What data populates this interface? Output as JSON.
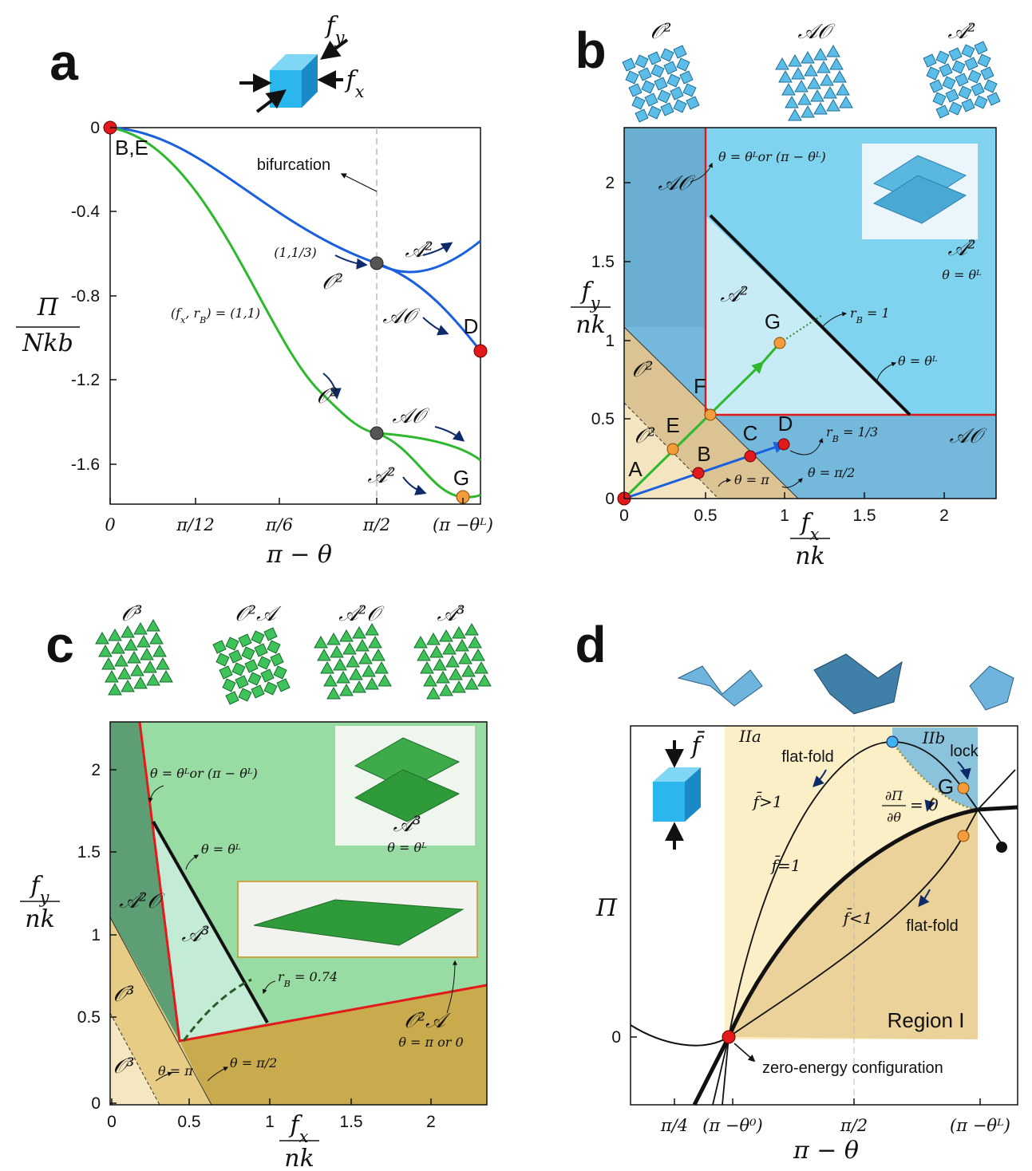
{
  "panels": {
    "a": {
      "label": "a",
      "inset": {
        "fy": [
          "f",
          "y"
        ],
        "fx": [
          "f",
          "x"
        ]
      },
      "y_axis": {
        "numerator": "Π",
        "denominator": "Nkb",
        "ticks": [
          "0",
          "-0.4",
          "-0.8",
          "-1.2",
          "-1.6"
        ]
      },
      "x_axis": {
        "title": "π − θ",
        "ticks": [
          "0",
          "π/12",
          "π/6",
          "π/2",
          "(π −θᴸ)"
        ]
      },
      "annotations": {
        "be": "B,E",
        "bifurcation": "bifurcation",
        "ratio": "(1,1/3)",
        "o2_upper": "𝒪²",
        "a2_upper": "𝒜²",
        "ao_upper": "𝒜𝒪",
        "d": "D",
        "green": [
          "(f",
          "x",
          ", r",
          "B",
          ") = (1,1)"
        ],
        "o2_lower": "𝒪²",
        "ao_lower": "𝒜𝒪",
        "a2_lower": "𝒜²",
        "g": "G"
      }
    },
    "b": {
      "label": "b",
      "tiles": [
        "𝒪²",
        "𝒜𝒪",
        "𝒜²"
      ],
      "y_axis": {
        "numerator": [
          "f",
          "y"
        ],
        "denominator": "nk",
        "ticks": [
          "0",
          "0.5",
          "1",
          "1.5",
          "2"
        ]
      },
      "x_axis": {
        "numerator": [
          "f",
          "x"
        ],
        "denominator": "nk",
        "ticks": [
          "0",
          "0.5",
          "1",
          "1.5",
          "2"
        ]
      },
      "annotations": {
        "boundary": "θ = θᴸor (π − θᴸ)",
        "ao_left": "𝒜𝒪",
        "a2_inner": "𝒜²",
        "a2_right": "𝒜²",
        "theta_l_right": "θ = θᴸ",
        "rb1": [
          "r",
          "B",
          " = 1"
        ],
        "theta_l_line": "θ = θᴸ",
        "g": "G",
        "f": "F",
        "o2_upper": "𝒪²",
        "e": "E",
        "o2_lower": "𝒪²",
        "d": "D",
        "c": "C",
        "b": "B",
        "a": "A",
        "rb13": [
          "r",
          "B",
          " = 1/3"
        ],
        "ao_right": "𝒜𝒪",
        "theta_pi": "θ = π",
        "theta_pi2": "θ = π/2"
      }
    },
    "c": {
      "label": "c",
      "tiles": [
        "𝒪³",
        "𝒪²𝒜",
        "𝒜²𝒪",
        "𝒜³"
      ],
      "y_axis": {
        "numerator": [
          "f",
          "y"
        ],
        "denominator": "nk",
        "ticks": [
          "0",
          "0.5",
          "1",
          "1.5",
          "2"
        ]
      },
      "x_axis": {
        "numerator": [
          "f",
          "x"
        ],
        "denominator": "nk",
        "ticks": [
          "0",
          "0.5",
          "1",
          "1.5",
          "2"
        ]
      },
      "annotations": {
        "boundary": "θ = θᴸor (π − θᴸ)",
        "theta_l_line": "θ = θᴸ",
        "a3_right": "𝒜³",
        "theta_l_right": "θ = θᴸ",
        "a2o": "𝒜²𝒪",
        "a3_inner": "𝒜³",
        "rb": [
          "r",
          "B",
          " = 0.74"
        ],
        "o2a": "𝒪²𝒜",
        "theta_pi_0": "θ = π or 0",
        "o3_upper": "𝒪³",
        "o3_lower": "𝒪³",
        "theta_pi": "θ = π",
        "theta_pi2": "θ = π/2"
      }
    },
    "d": {
      "label": "d",
      "inset": "f̄",
      "y_axis": {
        "title": "Π",
        "ticks": [
          "0"
        ]
      },
      "x_axis": {
        "title": "π − θ",
        "ticks": [
          "π/4",
          "(π −θ⁰)",
          "π/2",
          "(π −θᴸ)"
        ]
      },
      "annotations": {
        "iia": "IIa",
        "iib": "IIb",
        "flat_fold_upper": "flat-fold",
        "lock": "lock",
        "g": "G",
        "derivative_num": "∂Π",
        "derivative_den": "∂θ",
        "derivative_eq": "= 0",
        "f_gt": "f̄>1",
        "f_eq": "f̄=1",
        "f_lt": "f̄<1",
        "flat_fold_lower": "flat-fold",
        "region": "Region I",
        "zero": "zero-energy configuration"
      }
    }
  }
}
